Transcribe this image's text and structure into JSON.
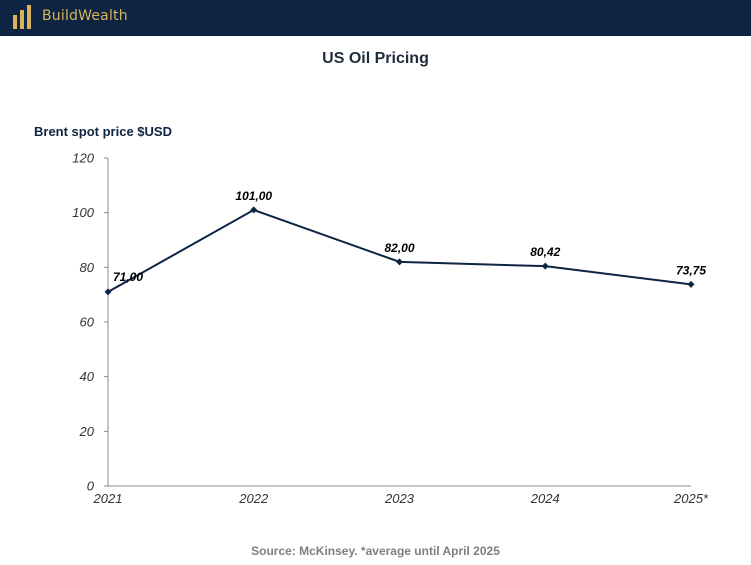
{
  "header": {
    "brand": "BuildWealth",
    "logo_icon": "bar-pillars-icon",
    "bar_color": "#0d2442",
    "brand_color": "#d9b45c"
  },
  "chart_data": {
    "type": "line",
    "title": "US Oil Pricing",
    "ylabel": "Brent spot price $USD",
    "xlabel": "",
    "categories": [
      "2021",
      "2022",
      "2023",
      "2024",
      "2025*"
    ],
    "series": [
      {
        "values": [
          71.0,
          101.0,
          82.0,
          80.42,
          73.75
        ],
        "labels": [
          "71,00",
          "101,00",
          "82,00",
          "80,42",
          "73,75"
        ]
      }
    ],
    "ylim": [
      0,
      120
    ],
    "yticks": [
      0,
      20,
      40,
      60,
      80,
      100,
      120
    ],
    "ytick_labels": [
      "0",
      "20",
      "40",
      "60",
      "80",
      "100",
      "120"
    ],
    "grid": false,
    "line_color": "#0d2442",
    "source": "Source: McKinsey. *average until April 2025"
  }
}
